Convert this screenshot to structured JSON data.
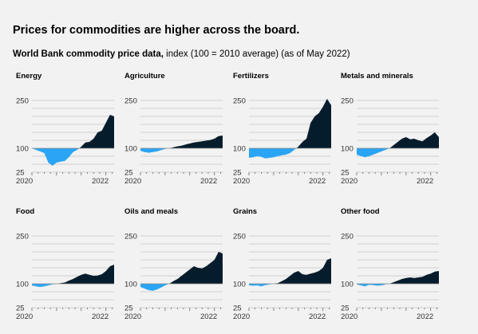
{
  "title": "Prices for commodities are higher across the board.",
  "subtitle_bold": "World Bank commodity price data,",
  "subtitle_rest": " index (100 = 2010 average) (as of May 2022)",
  "colors": {
    "below": "#2aa4f4",
    "above": "#051c2c"
  },
  "chart_data": [
    {
      "type": "area",
      "title": "Energy",
      "ylim": [
        25,
        250
      ],
      "yticks": [
        250,
        100,
        25
      ],
      "xticks": [
        "2020",
        "2022"
      ],
      "x": [
        "2019-01",
        "2019-03",
        "2019-05",
        "2019-07",
        "2019-09",
        "2019-11",
        "2020-01",
        "2020-03",
        "2020-05",
        "2020-07",
        "2020-09",
        "2020-11",
        "2021-01",
        "2021-03",
        "2021-05",
        "2021-07",
        "2021-09",
        "2021-11",
        "2022-01",
        "2022-03",
        "2022-05"
      ],
      "values": [
        100,
        95,
        90,
        85,
        55,
        45,
        55,
        58,
        60,
        72,
        88,
        95,
        105,
        118,
        120,
        130,
        150,
        155,
        180,
        205,
        200
      ]
    },
    {
      "type": "area",
      "title": "Agriculture",
      "ylim": [
        25,
        250
      ],
      "yticks": [
        250,
        100,
        25
      ],
      "xticks": [
        "2020",
        "2022"
      ],
      "x": [
        "2019-01",
        "2019-03",
        "2019-05",
        "2019-07",
        "2019-09",
        "2019-11",
        "2020-01",
        "2020-03",
        "2020-05",
        "2020-07",
        "2020-09",
        "2020-11",
        "2021-01",
        "2021-03",
        "2021-05",
        "2021-07",
        "2021-09",
        "2021-11",
        "2022-01",
        "2022-03",
        "2022-05"
      ],
      "values": [
        92,
        88,
        86,
        88,
        90,
        94,
        98,
        100,
        103,
        106,
        108,
        112,
        115,
        118,
        120,
        122,
        124,
        126,
        130,
        138,
        140
      ]
    },
    {
      "type": "area",
      "title": "Fertilizers",
      "ylim": [
        25,
        250
      ],
      "yticks": [
        250,
        100,
        25
      ],
      "xticks": [
        "2020",
        "2022"
      ],
      "x": [
        "2019-01",
        "2019-03",
        "2019-05",
        "2019-07",
        "2019-09",
        "2019-11",
        "2020-01",
        "2020-03",
        "2020-05",
        "2020-07",
        "2020-09",
        "2020-11",
        "2021-01",
        "2021-03",
        "2021-05",
        "2021-07",
        "2021-09",
        "2021-11",
        "2022-01",
        "2022-03",
        "2022-05"
      ],
      "values": [
        70,
        72,
        75,
        73,
        68,
        70,
        72,
        75,
        78,
        80,
        85,
        95,
        105,
        120,
        130,
        180,
        200,
        210,
        230,
        255,
        235
      ]
    },
    {
      "type": "area",
      "title": "Metals and minerals",
      "ylim": [
        25,
        250
      ],
      "yticks": [
        250,
        100,
        25
      ],
      "xticks": [
        "2020",
        "2022"
      ],
      "x": [
        "2019-01",
        "2019-03",
        "2019-05",
        "2019-07",
        "2019-09",
        "2019-11",
        "2020-01",
        "2020-03",
        "2020-05",
        "2020-07",
        "2020-09",
        "2020-11",
        "2021-01",
        "2021-03",
        "2021-05",
        "2021-07",
        "2021-09",
        "2021-11",
        "2022-01",
        "2022-03",
        "2022-05"
      ],
      "values": [
        80,
        76,
        72,
        75,
        80,
        85,
        90,
        95,
        100,
        110,
        120,
        130,
        135,
        128,
        130,
        125,
        122,
        132,
        140,
        150,
        135
      ]
    },
    {
      "type": "area",
      "title": "Food",
      "ylim": [
        25,
        250
      ],
      "yticks": [
        250,
        100,
        25
      ],
      "xticks": [
        "2020",
        "2022"
      ],
      "x": [
        "2019-01",
        "2019-03",
        "2019-05",
        "2019-07",
        "2019-09",
        "2019-11",
        "2020-01",
        "2020-03",
        "2020-05",
        "2020-07",
        "2020-09",
        "2020-11",
        "2021-01",
        "2021-03",
        "2021-05",
        "2021-07",
        "2021-09",
        "2021-11",
        "2022-01",
        "2022-03",
        "2022-05"
      ],
      "values": [
        95,
        92,
        90,
        92,
        95,
        98,
        100,
        102,
        104,
        110,
        115,
        122,
        128,
        132,
        128,
        125,
        126,
        130,
        140,
        155,
        160
      ]
    },
    {
      "type": "area",
      "title": "Oils and meals",
      "ylim": [
        25,
        250
      ],
      "yticks": [
        250,
        100,
        25
      ],
      "xticks": [
        "2020",
        "2022"
      ],
      "x": [
        "2019-01",
        "2019-03",
        "2019-05",
        "2019-07",
        "2019-09",
        "2019-11",
        "2020-01",
        "2020-03",
        "2020-05",
        "2020-07",
        "2020-09",
        "2020-11",
        "2021-01",
        "2021-03",
        "2021-05",
        "2021-07",
        "2021-09",
        "2021-11",
        "2022-01",
        "2022-03",
        "2022-05"
      ],
      "values": [
        90,
        85,
        80,
        78,
        82,
        88,
        95,
        100,
        108,
        115,
        125,
        135,
        145,
        155,
        150,
        148,
        155,
        165,
        175,
        200,
        195
      ]
    },
    {
      "type": "area",
      "title": "Grains",
      "ylim": [
        25,
        250
      ],
      "yticks": [
        250,
        100,
        25
      ],
      "xticks": [
        "2020",
        "2022"
      ],
      "x": [
        "2019-01",
        "2019-03",
        "2019-05",
        "2019-07",
        "2019-09",
        "2019-11",
        "2020-01",
        "2020-03",
        "2020-05",
        "2020-07",
        "2020-09",
        "2020-11",
        "2021-01",
        "2021-03",
        "2021-05",
        "2021-07",
        "2021-09",
        "2021-11",
        "2022-01",
        "2022-03",
        "2022-05"
      ],
      "values": [
        95,
        94,
        95,
        92,
        96,
        98,
        100,
        102,
        108,
        115,
        125,
        135,
        140,
        130,
        128,
        132,
        135,
        140,
        150,
        175,
        180
      ]
    },
    {
      "type": "area",
      "title": "Other food",
      "ylim": [
        25,
        250
      ],
      "yticks": [
        250,
        100,
        25
      ],
      "xticks": [
        "2020",
        "2022"
      ],
      "x": [
        "2019-01",
        "2019-03",
        "2019-05",
        "2019-07",
        "2019-09",
        "2019-11",
        "2020-01",
        "2020-03",
        "2020-05",
        "2020-07",
        "2020-09",
        "2020-11",
        "2021-01",
        "2021-03",
        "2021-05",
        "2021-07",
        "2021-09",
        "2021-11",
        "2022-01",
        "2022-03",
        "2022-05"
      ],
      "values": [
        98,
        95,
        92,
        97,
        96,
        94,
        95,
        98,
        100,
        105,
        110,
        115,
        118,
        120,
        118,
        120,
        122,
        128,
        132,
        138,
        140
      ]
    }
  ]
}
